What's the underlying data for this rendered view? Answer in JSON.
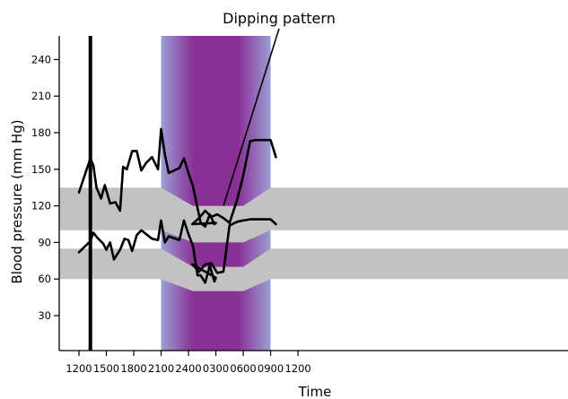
{
  "chart_data": {
    "type": "line",
    "title": "",
    "xlabel": "Time",
    "ylabel": "Blood pressure (mm Hg)",
    "x_unit": "clock time (hhmm)",
    "x_ticks": [
      "1200",
      "1500",
      "1800",
      "2100",
      "2400",
      "0300",
      "0600",
      "0900",
      "1200"
    ],
    "y_ticks": [
      30,
      60,
      90,
      120,
      150,
      180,
      210,
      240
    ],
    "ylim": [
      10,
      260
    ],
    "night_region": {
      "start": "2100",
      "end": "0900",
      "color_edge": "#9b9fd4",
      "color_core": "#8a2f95"
    },
    "normal_bands": {
      "color": "#c3c1c1",
      "systolic": [
        {
          "time": "2100",
          "low": 100,
          "high": 135
        },
        {
          "time": "2430",
          "low": 90,
          "high": 120
        },
        {
          "time": "0600",
          "low": 90,
          "high": 120
        },
        {
          "time": "0900",
          "low": 100,
          "high": 135
        }
      ],
      "diastolic": [
        {
          "time": "2100",
          "low": 60,
          "high": 85
        },
        {
          "time": "2430",
          "low": 50,
          "high": 70
        },
        {
          "time": "0600",
          "low": 50,
          "high": 70
        },
        {
          "time": "0900",
          "low": 60,
          "high": 85
        }
      ]
    },
    "event_marker": {
      "time": "1315"
    },
    "annotation": {
      "text": "Dipping pattern",
      "points_to": {
        "time": "0350",
        "value": 120
      }
    },
    "series": [
      {
        "key": "systolic",
        "x": [
          "1200",
          "1315",
          "1335",
          "1355",
          "1425",
          "1450",
          "1525",
          "1600",
          "1630",
          "1650",
          "1715",
          "1750",
          "1820",
          "1850",
          "1920",
          "2000",
          "2040",
          "2100",
          "2125",
          "2150",
          "2300",
          "2330",
          "2400",
          "2430",
          "2500",
          "2520",
          "2550",
          "2620",
          "2650",
          "2700",
          "0025",
          "0110",
          "0150",
          "0230",
          "0310",
          "0350",
          "0430",
          "0520",
          "0600",
          "0645",
          "0720",
          "0800",
          "0900",
          "0935"
        ],
        "values": [
          131,
          159,
          153,
          135,
          126,
          137,
          122,
          123,
          116,
          152,
          150,
          165,
          165,
          149,
          155,
          160,
          150,
          183,
          162,
          147,
          151,
          159,
          147,
          136,
          118,
          106,
          103,
          113,
          105,
          106,
          105,
          110,
          116,
          111,
          113,
          110,
          106,
          125,
          145,
          173,
          174,
          174,
          174,
          160
        ]
      },
      {
        "key": "diastolic",
        "x": [
          "1200",
          "1315",
          "1335",
          "1400",
          "1440",
          "1500",
          "1525",
          "1550",
          "1630",
          "1700",
          "1725",
          "1750",
          "1820",
          "1850",
          "1920",
          "2000",
          "2040",
          "2100",
          "2125",
          "2150",
          "2300",
          "2330",
          "2400",
          "2430",
          "2500",
          "2520",
          "2550",
          "2620",
          "2650",
          "2700",
          "0025",
          "0110",
          "0150",
          "0230",
          "0310",
          "0350",
          "0430",
          "0520",
          "0600",
          "0645",
          "0720",
          "0800",
          "0900",
          "0935"
        ],
        "values": [
          82,
          91,
          98,
          94,
          89,
          84,
          90,
          76,
          84,
          93,
          92,
          83,
          96,
          100,
          97,
          93,
          92,
          108,
          90,
          95,
          92,
          108,
          97,
          87,
          63,
          63,
          57,
          71,
          58,
          61,
          72,
          66,
          72,
          73,
          65,
          66,
          104,
          107,
          108,
          109,
          109,
          109,
          109,
          105
        ]
      }
    ]
  }
}
